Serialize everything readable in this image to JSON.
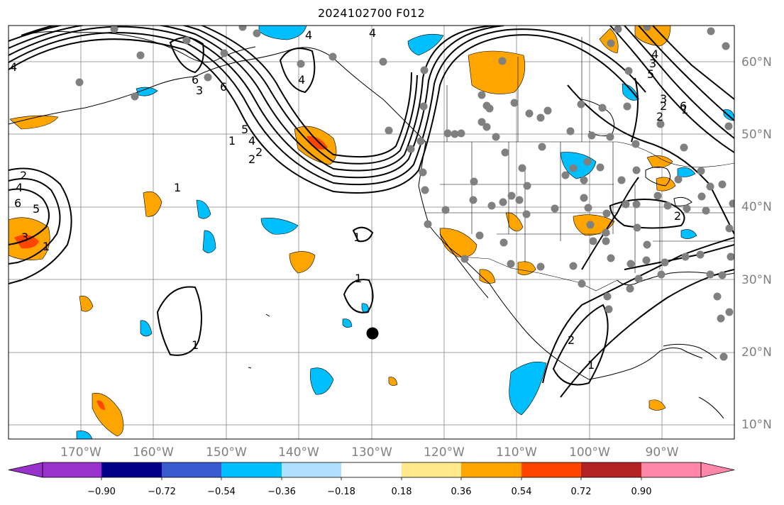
{
  "title": "2024102700 F012",
  "map": {
    "projection": "equirectangular",
    "lon_range": [
      -180,
      -80
    ],
    "lat_range": [
      8,
      65
    ],
    "gridline_color": "#808080",
    "coastline_color": "#000000",
    "lon_labels": [
      "170°W",
      "160°W",
      "150°W",
      "140°W",
      "130°W",
      "120°W",
      "110°W",
      "100°W",
      "90°W"
    ],
    "lat_labels": [
      "10°N",
      "20°N",
      "30°N",
      "40°N",
      "50°N",
      "60°N"
    ],
    "station_marker_color": "#808080",
    "highlight_marker_color": "#000000"
  },
  "contours": {
    "color": "#000000",
    "visible_labels": [
      "1",
      "2",
      "3",
      "4",
      "5",
      "6",
      "4",
      "6",
      "4",
      "3",
      "2",
      "1",
      "5",
      "4",
      "2",
      "1",
      "2",
      "4",
      "6",
      "5",
      "3",
      "1",
      "1",
      "1",
      "2",
      "1",
      "2",
      "2",
      "3",
      "4",
      "6",
      "4",
      "1"
    ]
  },
  "shading": {
    "negative_fill": "#00bfff",
    "positive_fill": "#ffa500",
    "strong_positive_fill": "#ff4500"
  },
  "colorbar": {
    "colors": [
      "#9932cc",
      "#00008b",
      "#3a5bd0",
      "#00bfff",
      "#b0e0ff",
      "#ffffff",
      "#ffe88a",
      "#ffa500",
      "#ff4500",
      "#b22222",
      "#ff88aa"
    ],
    "tick_labels": [
      "−0.90",
      "−0.72",
      "−0.54",
      "−0.36",
      "−0.18",
      "0.18",
      "0.36",
      "0.54",
      "0.72",
      "0.90"
    ],
    "extend": "both"
  }
}
